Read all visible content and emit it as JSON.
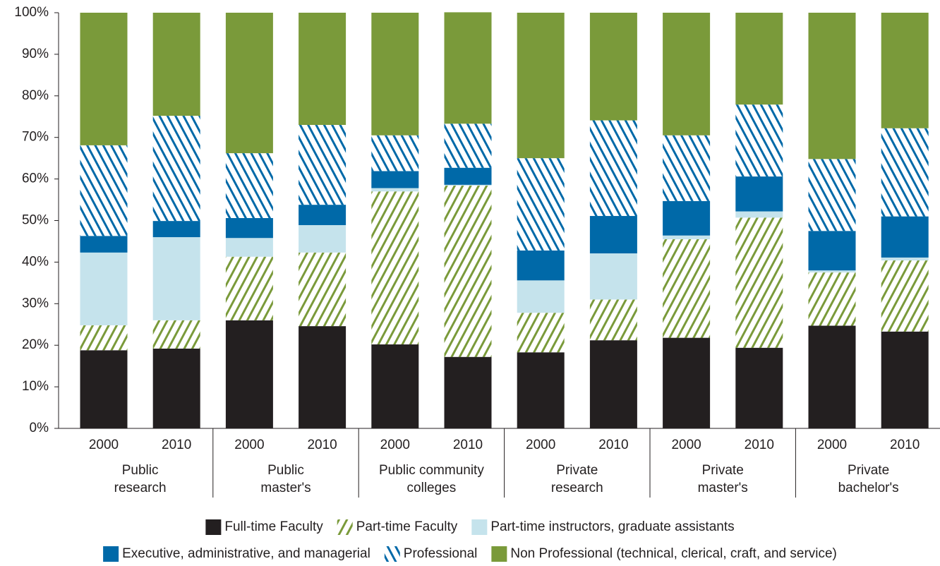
{
  "chart_data": {
    "type": "stacked_bar",
    "categories": [
      "2000",
      "2010",
      "2000",
      "2010",
      "2000",
      "2010",
      "2000",
      "2010",
      "2000",
      "2010",
      "2000",
      "2010"
    ],
    "groups": [
      [
        "Public",
        "research"
      ],
      [
        "Public",
        "master's"
      ],
      [
        "Public community",
        "colleges"
      ],
      [
        "Private",
        "research"
      ],
      [
        "Private",
        "master's"
      ],
      [
        "Private",
        "bachelor's"
      ]
    ],
    "series": [
      {
        "name": "Full-time Faculty",
        "color": "#231f20",
        "hatch": false,
        "values": [
          18.8,
          19.2,
          26.0,
          24.6,
          20.2,
          17.2,
          18.3,
          21.2,
          21.8,
          19.4,
          24.7,
          23.3
        ]
      },
      {
        "name": "Part-time Faculty",
        "color": "#7a9a3a",
        "hatch": true,
        "values": [
          6.0,
          6.8,
          15.3,
          17.7,
          36.8,
          41.2,
          9.5,
          9.8,
          23.7,
          31.3,
          12.8,
          17.1
        ]
      },
      {
        "name": "Part-time instructors, graduate assistants",
        "color": "#c5e3ec",
        "hatch": false,
        "values": [
          17.5,
          20.0,
          4.5,
          6.6,
          0.8,
          0.2,
          7.8,
          11.1,
          0.9,
          1.5,
          0.5,
          0.7
        ]
      },
      {
        "name": "Executive, administrative, and managerial",
        "color": "#0069a8",
        "hatch": false,
        "values": [
          4.0,
          3.9,
          4.8,
          4.9,
          4.1,
          4.1,
          7.2,
          9.0,
          8.3,
          8.4,
          9.5,
          9.9
        ]
      },
      {
        "name": "Professional",
        "color": "#0069a8",
        "hatch": true,
        "values": [
          21.8,
          25.3,
          15.6,
          19.2,
          8.6,
          10.6,
          22.2,
          23.0,
          15.8,
          17.3,
          17.3,
          21.2
        ]
      },
      {
        "name": "Non Professional (technical, clerical, craft, and service)",
        "color": "#7a9a3a",
        "hatch": false,
        "values": [
          31.9,
          24.8,
          33.8,
          27.0,
          29.5,
          26.8,
          35.0,
          25.9,
          29.5,
          22.1,
          35.2,
          27.8
        ]
      }
    ],
    "ylim": [
      0,
      100
    ],
    "yticks": [
      {
        "value": 0,
        "label": "0%"
      },
      {
        "value": 10,
        "label": "10%"
      },
      {
        "value": 20,
        "label": "20%"
      },
      {
        "value": 30,
        "label": "30%"
      },
      {
        "value": 40,
        "label": "40%"
      },
      {
        "value": 50,
        "label": "50%"
      },
      {
        "value": 60,
        "label": "60%"
      },
      {
        "value": 70,
        "label": "70%"
      },
      {
        "value": 80,
        "label": "80%"
      },
      {
        "value": 90,
        "label": "90%"
      },
      {
        "value": 100,
        "label": "100%"
      }
    ]
  }
}
